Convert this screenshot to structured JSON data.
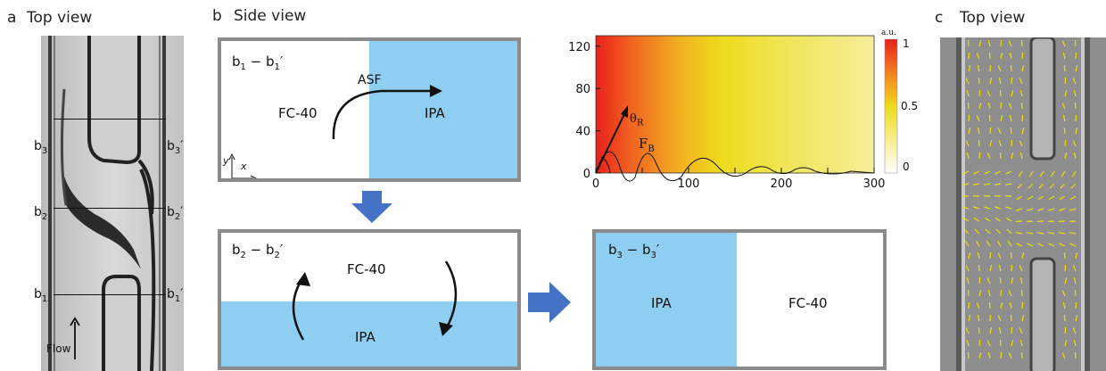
{
  "colors": {
    "ipa_blue": "#8ecff1",
    "frame_gray": "#8b8b8b",
    "arrow_blue": "#4472c4",
    "vector_yellow": "#f0e000"
  },
  "panel_a": {
    "letter": "a",
    "title": "Top view",
    "lines": [
      {
        "left": "b",
        "left_sub": "3",
        "right": "b",
        "right_sub": "3",
        "right_prime": "′"
      },
      {
        "left": "b",
        "left_sub": "2",
        "right": "b",
        "right_sub": "2",
        "right_prime": "′"
      },
      {
        "left": "b",
        "left_sub": "1",
        "right": "b",
        "right_sub": "1",
        "right_prime": "′"
      }
    ],
    "flow_label": "Flow"
  },
  "panel_b": {
    "letter": "b",
    "title": "Side view",
    "box1": {
      "label_main": "b",
      "label_sub": "1",
      "label_rest": " − b",
      "label_sub2": "1",
      "label_prime": "′",
      "left_fluid": "FC-40",
      "right_fluid": "IPA",
      "arrow_label": "ASF",
      "axis_y": "y",
      "axis_x": "x"
    },
    "box2": {
      "label_main": "b",
      "label_sub": "2",
      "label_rest": " − b",
      "label_sub2": "2",
      "label_prime": "′",
      "top_fluid": "FC-40",
      "bottom_fluid": "IPA"
    },
    "box3": {
      "label_main": "b",
      "label_sub": "3",
      "label_rest": " − b",
      "label_sub2": "3",
      "label_prime": "′",
      "left_fluid": "IPA",
      "right_fluid": "FC-40"
    }
  },
  "chart_data": {
    "type": "heatmap",
    "xlim": [
      0,
      300
    ],
    "ylim": [
      0,
      130
    ],
    "xticks": [
      "0",
      "100",
      "200",
      "300"
    ],
    "yticks": [
      "0",
      "40",
      "80",
      "120"
    ],
    "colorbar": {
      "unit": "a.u.",
      "ticks": [
        "1",
        "0.5",
        "0"
      ],
      "range": [
        0,
        1
      ]
    },
    "annotations": {
      "angle": "θ",
      "angle_sub": "R",
      "force": "F",
      "force_sub": "B"
    }
  },
  "panel_c": {
    "letter": "c",
    "title": "Top view"
  }
}
